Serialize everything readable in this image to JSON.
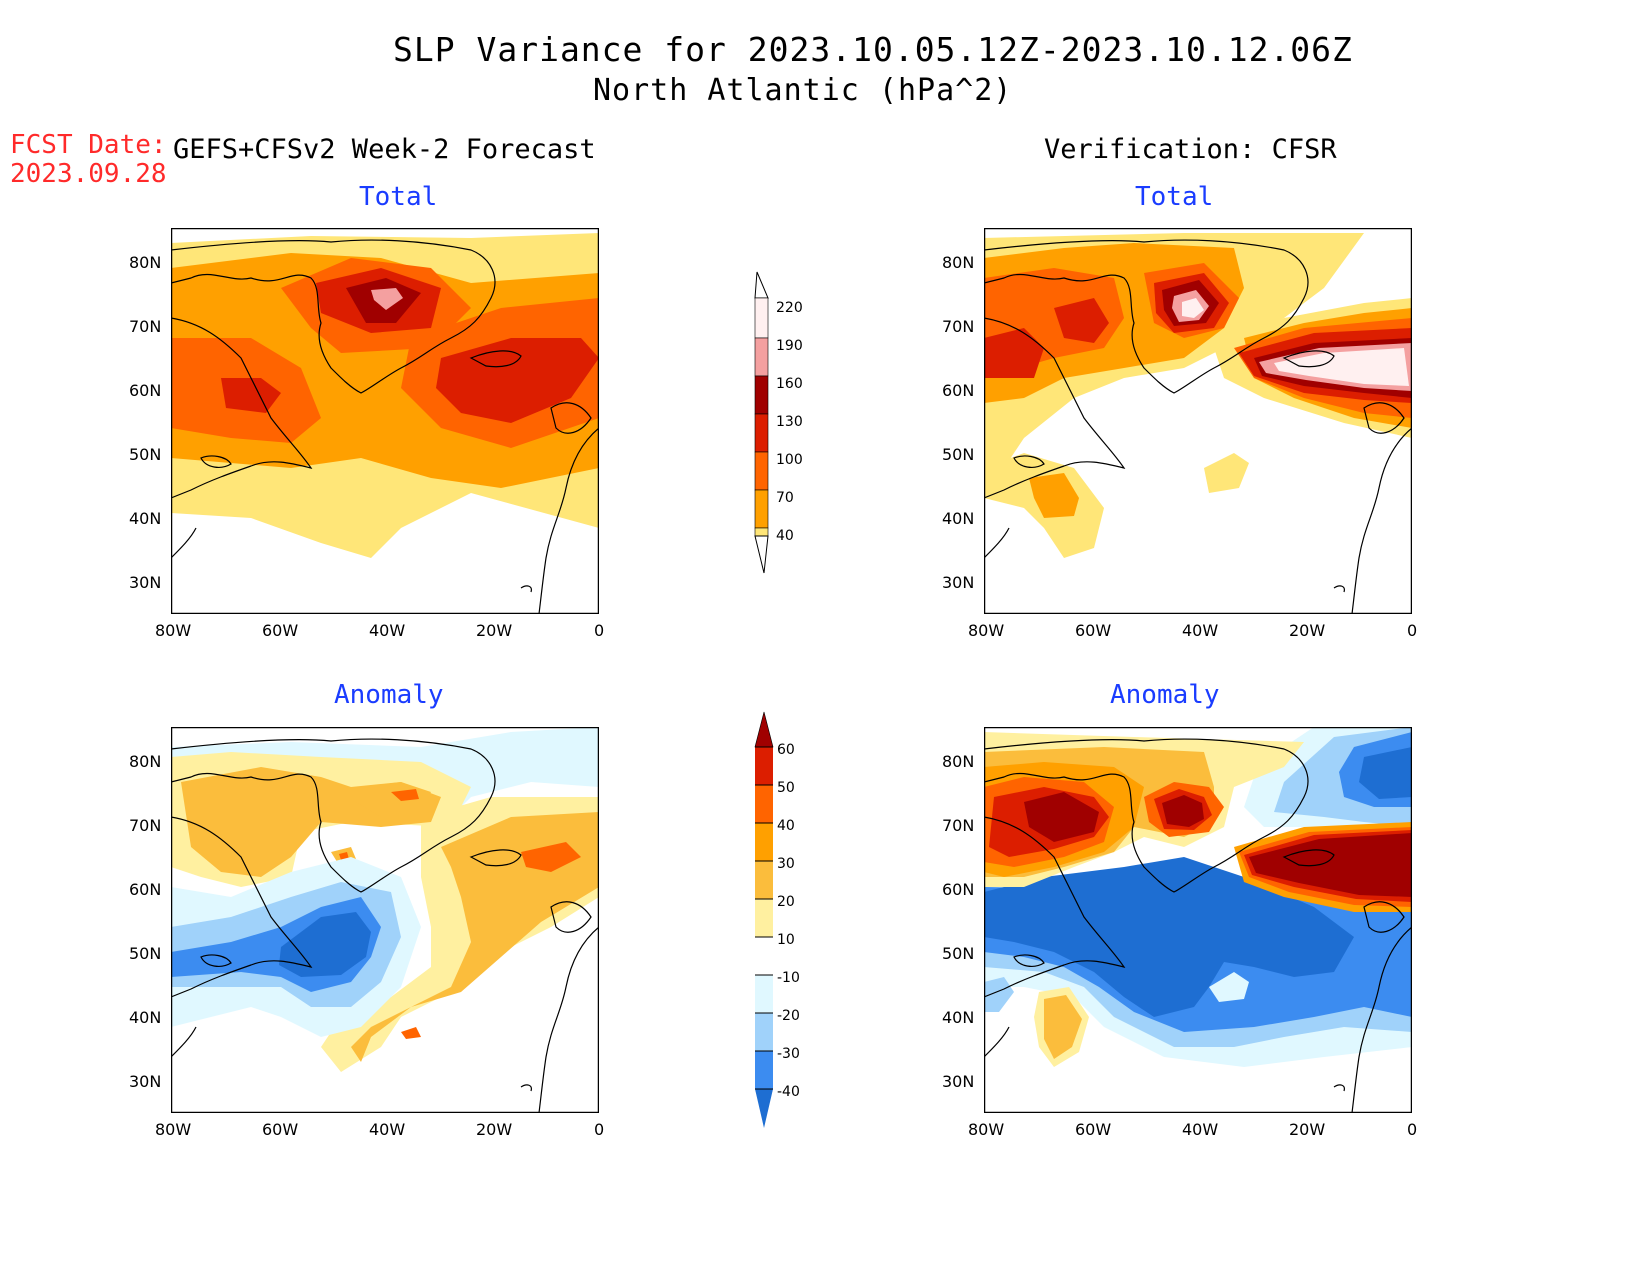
{
  "title": "SLP Variance for 2023.10.05.12Z-2023.10.12.06Z",
  "subtitle": "North Atlantic (hPa^2)",
  "fcst_date_label": "FCST Date:",
  "fcst_date_value": "2023.09.28",
  "left_header": "GEFS+CFSv2 Week-2 Forecast",
  "right_header": "Verification: CFSR",
  "panel_titles": {
    "fc_total": "Total",
    "ver_total": "Total",
    "fc_anom": "Anomaly",
    "ver_anom": "Anomaly"
  },
  "map": {
    "lat_labels": [
      "80N",
      "70N",
      "60N",
      "50N",
      "40N",
      "30N"
    ],
    "lon_labels": [
      "80W",
      "60W",
      "40W",
      "20W",
      "0"
    ]
  },
  "colorbar_total": {
    "labels": [
      "220",
      "190",
      "160",
      "130",
      "100",
      "70",
      "40"
    ],
    "colors": [
      "#fff0f0",
      "#f4a0a0",
      "#a00000",
      "#dc1e00",
      "#ff6400",
      "#ffa000",
      "#ffe678"
    ]
  },
  "colorbar_anom": {
    "labels": [
      "60",
      "50",
      "40",
      "30",
      "20",
      "10",
      "-10",
      "-20",
      "-30",
      "-40"
    ],
    "colors": [
      "#a00000",
      "#dc1e00",
      "#ff6400",
      "#ffa000",
      "#fbbd3c",
      "#fff0a0",
      "#ffffff",
      "#e0f8ff",
      "#a0d2fa",
      "#3c8cf0",
      "#1e6ed2"
    ]
  }
}
